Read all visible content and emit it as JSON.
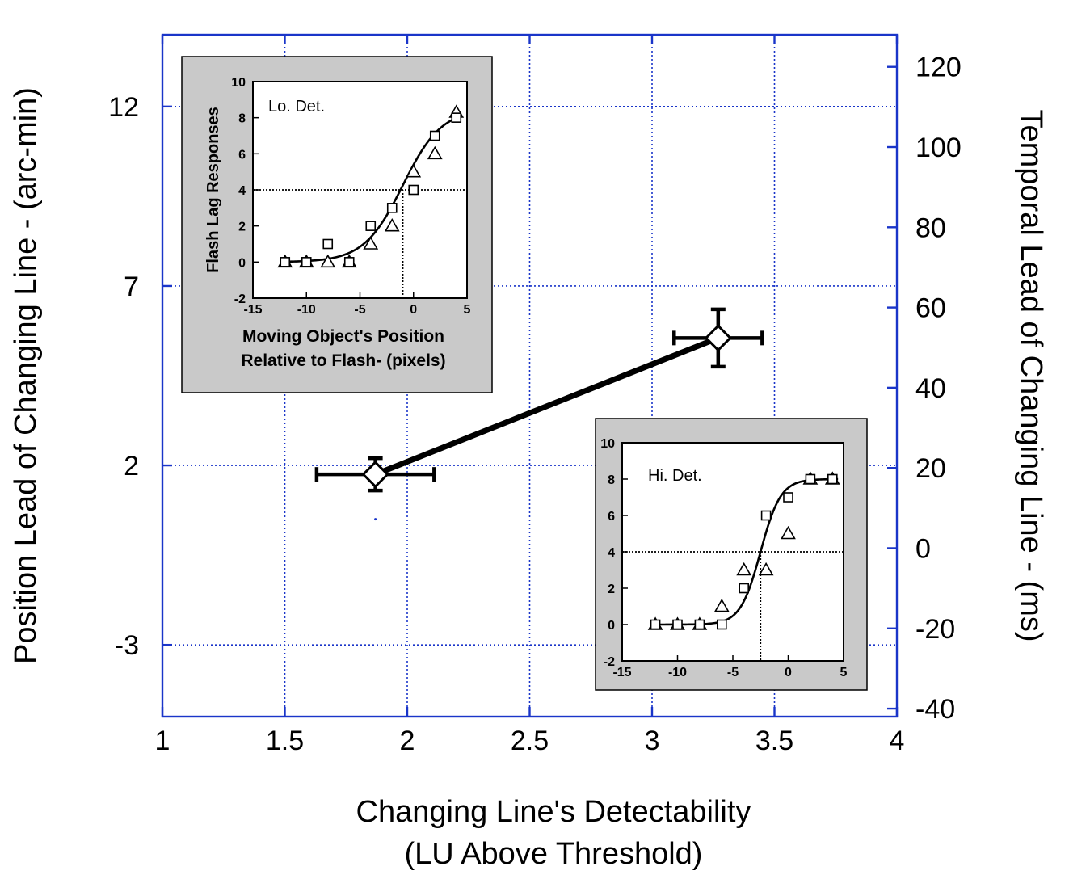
{
  "chart_data": [
    {
      "type": "scatter",
      "xlabel": [
        "Changing Line's Detectability",
        "(LU Above Threshold)"
      ],
      "ylabel": "Position Lead of Changing Line - (arc-min)",
      "y2label": "Temporal Lead of Changing Line - (ms)",
      "xlim": [
        1,
        4
      ],
      "ylim": [
        -5,
        14
      ],
      "y2lim": [
        -42,
        128
      ],
      "x_ticks": [
        "1",
        "1.5",
        "2",
        "2.5",
        "3",
        "3.5",
        "4"
      ],
      "y_ticks": [
        "12",
        "7",
        "2",
        "-3"
      ],
      "y2_ticks": [
        "120",
        "100",
        "80",
        "60",
        "40",
        "20",
        "0",
        "-20",
        "-40"
      ],
      "grid": true,
      "points": [
        {
          "x": 1.87,
          "y": 1.75,
          "xerr": 0.24,
          "yerr": 0.45
        },
        {
          "x": 3.27,
          "y": 5.55,
          "xerr": 0.18,
          "yerr": 0.8
        }
      ],
      "stray_dot": {
        "x": 1.87,
        "y": 0.5
      }
    },
    {
      "type": "scatter",
      "annotation": "Lo. Det.",
      "xlabel": [
        "Moving Object's Position",
        "Relative to Flash- (pixels)"
      ],
      "ylabel": "Flash Lag Responses",
      "xlim": [
        -15,
        5
      ],
      "ylim": [
        -2,
        10
      ],
      "x_ticks": [
        "-15",
        "-10",
        "-5",
        "0",
        "5"
      ],
      "y_ticks": [
        "10",
        "8",
        "6",
        "4",
        "2",
        "0",
        "-2"
      ],
      "threshold": {
        "x": -1,
        "y": 4
      },
      "curve": {
        "type": "logistic",
        "min": 0,
        "max": 8.5,
        "x0": -1,
        "slope": 0.55
      },
      "squares": [
        [
          -12,
          0
        ],
        [
          -10,
          0
        ],
        [
          -8,
          1
        ],
        [
          -6,
          0
        ],
        [
          -4,
          2
        ],
        [
          -2,
          3
        ],
        [
          0,
          4
        ],
        [
          2,
          7
        ],
        [
          4,
          8
        ]
      ],
      "triangles": [
        [
          -12,
          0
        ],
        [
          -10,
          0
        ],
        [
          -8,
          0
        ],
        [
          -6,
          0
        ],
        [
          -4,
          1
        ],
        [
          -2,
          2
        ],
        [
          0,
          5
        ],
        [
          2,
          6
        ],
        [
          4,
          8.3
        ]
      ]
    },
    {
      "type": "scatter",
      "annotation": "Hi. Det.",
      "xlabel": [],
      "ylabel": "",
      "xlim": [
        -15,
        5
      ],
      "ylim": [
        -2,
        10
      ],
      "x_ticks": [
        "-15",
        "-10",
        "-5",
        "0",
        "5"
      ],
      "y_ticks": [
        "10",
        "8",
        "6",
        "4",
        "2",
        "0",
        "-2"
      ],
      "threshold": {
        "x": -2.5,
        "y": 4
      },
      "curve": {
        "type": "logistic",
        "min": 0,
        "max": 8,
        "x0": -2.5,
        "slope": 1.1
      },
      "squares": [
        [
          -12,
          0
        ],
        [
          -10,
          0
        ],
        [
          -8,
          0
        ],
        [
          -6,
          0
        ],
        [
          -4,
          2
        ],
        [
          -2,
          6
        ],
        [
          0,
          7
        ],
        [
          2,
          8
        ],
        [
          4,
          8
        ]
      ],
      "triangles": [
        [
          -12,
          0
        ],
        [
          -10,
          0
        ],
        [
          -8,
          0
        ],
        [
          -6,
          1
        ],
        [
          -4,
          3
        ],
        [
          -2,
          3
        ],
        [
          0,
          5
        ],
        [
          2,
          8
        ],
        [
          4,
          8
        ]
      ]
    }
  ]
}
